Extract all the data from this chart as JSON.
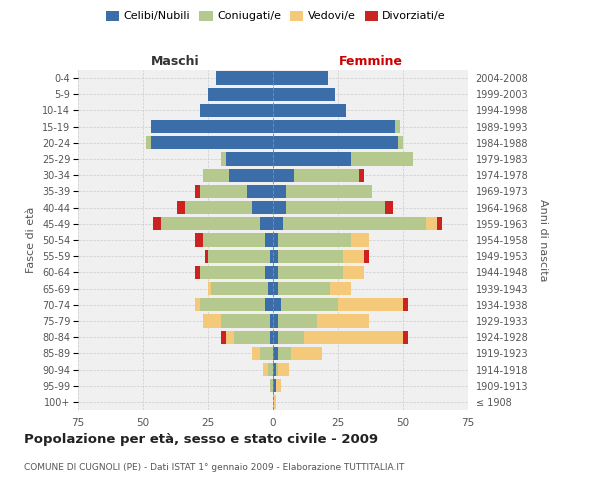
{
  "age_groups": [
    "100+",
    "95-99",
    "90-94",
    "85-89",
    "80-84",
    "75-79",
    "70-74",
    "65-69",
    "60-64",
    "55-59",
    "50-54",
    "45-49",
    "40-44",
    "35-39",
    "30-34",
    "25-29",
    "20-24",
    "15-19",
    "10-14",
    "5-9",
    "0-4"
  ],
  "birth_years": [
    "≤ 1908",
    "1909-1913",
    "1914-1918",
    "1919-1923",
    "1924-1928",
    "1929-1933",
    "1934-1938",
    "1939-1943",
    "1944-1948",
    "1949-1953",
    "1954-1958",
    "1959-1963",
    "1964-1968",
    "1969-1973",
    "1974-1978",
    "1979-1983",
    "1984-1988",
    "1989-1993",
    "1994-1998",
    "1999-2003",
    "2004-2008"
  ],
  "male": {
    "celibe": [
      0,
      0,
      0,
      0,
      1,
      1,
      3,
      2,
      3,
      1,
      3,
      5,
      8,
      10,
      17,
      18,
      47,
      47,
      28,
      25,
      22
    ],
    "coniugato": [
      0,
      1,
      2,
      5,
      14,
      19,
      25,
      22,
      25,
      24,
      24,
      38,
      26,
      18,
      10,
      2,
      2,
      0,
      0,
      0,
      0
    ],
    "vedovo": [
      0,
      0,
      2,
      3,
      3,
      7,
      2,
      1,
      0,
      0,
      0,
      0,
      0,
      0,
      0,
      0,
      0,
      0,
      0,
      0,
      0
    ],
    "divorziato": [
      0,
      0,
      0,
      0,
      2,
      0,
      0,
      0,
      2,
      1,
      3,
      3,
      3,
      2,
      0,
      0,
      0,
      0,
      0,
      0,
      0
    ]
  },
  "female": {
    "nubile": [
      0,
      1,
      1,
      2,
      2,
      2,
      3,
      2,
      2,
      2,
      2,
      4,
      5,
      5,
      8,
      30,
      48,
      47,
      28,
      24,
      21
    ],
    "coniugata": [
      0,
      0,
      1,
      5,
      10,
      15,
      22,
      20,
      25,
      25,
      28,
      55,
      38,
      33,
      25,
      24,
      2,
      2,
      0,
      0,
      0
    ],
    "vedova": [
      1,
      2,
      4,
      12,
      38,
      20,
      25,
      8,
      8,
      8,
      7,
      4,
      0,
      0,
      0,
      0,
      0,
      0,
      0,
      0,
      0
    ],
    "divorziata": [
      0,
      0,
      0,
      0,
      2,
      0,
      2,
      0,
      0,
      2,
      0,
      2,
      3,
      0,
      2,
      0,
      0,
      0,
      0,
      0,
      0
    ]
  },
  "colors": {
    "celibe": "#3b6ea8",
    "coniugato": "#b5c98e",
    "vedovo": "#f5c97a",
    "divorziato": "#cc2222"
  },
  "title": "Popolazione per età, sesso e stato civile - 2009",
  "subtitle": "COMUNE DI CUGNOLI (PE) - Dati ISTAT 1° gennaio 2009 - Elaborazione TUTTITALIA.IT",
  "xlabel_left": "Maschi",
  "xlabel_right": "Femmine",
  "ylabel_left": "Fasce di età",
  "ylabel_right": "Anni di nascita",
  "xlim": 75,
  "background_color": "#f0f0f0",
  "grid_color": "#cccccc"
}
